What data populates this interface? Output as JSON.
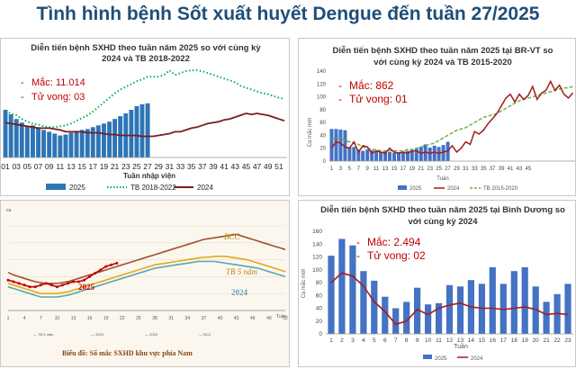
{
  "page_title": "Tình hình bệnh Sốt xuất huyết Dengue đến tuần 27/2025",
  "colors": {
    "bar": "#2e75b6",
    "avg": "#00b050",
    "prev": "#7b1c1c",
    "title": "#1f4e79",
    "annotation": "#c00000"
  },
  "chart_data": [
    {
      "type": "bar",
      "title_line1": "Diễn tiến bệnh SXHD theo tuần năm 2025 so với cùng kỳ",
      "title_line2": "2024 và TB 2018-2022",
      "annotation_cases": "Mắc: 11.014",
      "annotation_deaths": "Tử vong: 03",
      "xlabel": "Tuần nhập viện",
      "x_tick_labels": [
        "01",
        "03",
        "05",
        "07",
        "09",
        "11",
        "13",
        "15",
        "17",
        "19",
        "21",
        "23",
        "25",
        "27",
        "29",
        "31",
        "33",
        "35",
        "37",
        "39",
        "41",
        "43",
        "45",
        "47",
        "49",
        "51"
      ],
      "weeks": [
        1,
        2,
        3,
        4,
        5,
        6,
        7,
        8,
        9,
        10,
        11,
        12,
        13,
        14,
        15,
        16,
        17,
        18,
        19,
        20,
        21,
        22,
        23,
        24,
        25,
        26,
        27,
        28,
        29,
        30,
        31,
        32,
        33,
        34,
        35,
        36,
        37,
        38,
        39,
        40,
        41,
        42,
        43,
        44,
        45,
        46,
        47,
        48,
        49,
        50,
        51,
        52
      ],
      "ylim": [
        0,
        1000
      ],
      "series": [
        {
          "name": "2025",
          "kind": "bar",
          "values": [
            520,
            470,
            420,
            380,
            340,
            350,
            330,
            300,
            280,
            260,
            240,
            250,
            270,
            290,
            300,
            310,
            330,
            350,
            370,
            390,
            420,
            450,
            480,
            520,
            560,
            580,
            590
          ]
        },
        {
          "name": "TB 2018-2022",
          "kind": "dotted",
          "values": [
            500,
            480,
            460,
            420,
            390,
            370,
            360,
            340,
            330,
            330,
            340,
            350,
            370,
            400,
            430,
            460,
            500,
            550,
            600,
            650,
            700,
            740,
            770,
            800,
            830,
            850,
            880,
            880,
            880,
            900,
            950,
            900,
            920,
            940,
            950,
            950,
            940,
            920,
            900,
            880,
            860,
            840,
            820,
            780,
            760,
            740,
            720,
            700,
            690,
            670,
            650,
            640
          ]
        },
        {
          "name": "2024",
          "kind": "line",
          "values": [
            380,
            370,
            360,
            350,
            340,
            330,
            320,
            320,
            320,
            310,
            300,
            280,
            280,
            280,
            280,
            270,
            270,
            270,
            260,
            250,
            250,
            240,
            240,
            240,
            240,
            230,
            230,
            230,
            240,
            250,
            260,
            280,
            280,
            300,
            320,
            330,
            350,
            370,
            380,
            390,
            410,
            420,
            440,
            460,
            480,
            470,
            480,
            470,
            460,
            440,
            420,
            400
          ]
        }
      ],
      "legend": [
        "2025",
        "TB 2018-2022",
        "2024"
      ]
    },
    {
      "type": "bar",
      "title_line1": "Diễn tiến bệnh SXHD theo tuần năm 2025 tại BR-VT so",
      "title_line2": "với cùng kỳ 2024 và TB 2015-2020",
      "annotation_cases": "Mắc: 862",
      "annotation_deaths": "Tử vong: 01",
      "ylabel": "Ca mắc mới",
      "xlabel": "Tuần",
      "y_ticks": [
        "140",
        "120",
        "100",
        "80",
        "60",
        "40",
        "20",
        "0"
      ],
      "x_tick_labels": [
        "1",
        "3",
        "5",
        "7",
        "9",
        "11",
        "13",
        "15",
        "17",
        "19",
        "21",
        "23",
        "25",
        "27",
        "29",
        "31",
        "33",
        "35",
        "37",
        "39",
        "41",
        "43",
        "45"
      ],
      "ylim": [
        0,
        140
      ],
      "series": [
        {
          "name": "2025",
          "kind": "bar",
          "values": [
            50,
            50,
            49,
            48,
            22,
            22,
            18,
            16,
            18,
            17,
            16,
            14,
            15,
            14,
            13,
            14,
            15,
            16,
            17,
            19,
            22,
            26,
            21,
            24,
            22,
            25,
            30
          ]
        },
        {
          "name": "2024",
          "kind": "line",
          "values": [
            20,
            30,
            28,
            22,
            20,
            30,
            14,
            24,
            22,
            12,
            16,
            14,
            12,
            20,
            14,
            12,
            14,
            12,
            16,
            16,
            12,
            14,
            12,
            14,
            12,
            14,
            16,
            24,
            14,
            20,
            30,
            26,
            46,
            42,
            48,
            58,
            66,
            74,
            86,
            98,
            104,
            92,
            104,
            96,
            102,
            116,
            96,
            106,
            110,
            124,
            110,
            118,
            104,
            98,
            106
          ]
        },
        {
          "name": "TB 2015-2020",
          "kind": "dashed",
          "values": [
            34,
            36,
            36,
            32,
            30,
            28,
            26,
            22,
            20,
            18,
            18,
            16,
            16,
            16,
            16,
            16,
            16,
            18,
            18,
            20,
            22,
            24,
            26,
            28,
            32,
            36,
            40,
            44,
            48,
            50,
            52,
            56,
            60,
            64,
            68,
            70,
            72,
            74,
            78,
            82,
            86,
            90,
            94,
            96,
            98,
            100,
            102,
            104,
            106,
            108,
            110,
            112,
            114,
            114,
            116
          ]
        }
      ],
      "legend": [
        "2025",
        "2024",
        "TB 2015-2020"
      ]
    },
    {
      "type": "line",
      "title_partial": "ca",
      "caption": "Biểu đồ: Số mắc SXHD khu vực phía Nam",
      "xlabel": "Tuần",
      "x_tick_labels": [
        "1",
        "4",
        "7",
        "10",
        "13",
        "16",
        "19",
        "22",
        "25",
        "28",
        "31",
        "34",
        "37",
        "40",
        "43",
        "46",
        "49",
        "52"
      ],
      "ylim": [
        0,
        100
      ],
      "labels": {
        "bcc": "BCC",
        "avg": "TB 5 năm",
        "y2024": "2024",
        "y2025": "2025"
      },
      "legend": [
        "— TB 5 năm",
        "— 2024",
        "— 2025",
        "— BCC"
      ],
      "series": [
        {
          "name": "BCC",
          "values": [
            45,
            42,
            40,
            38,
            36,
            34,
            33,
            32,
            32,
            32,
            33,
            34,
            36,
            38,
            40,
            42,
            44,
            46,
            48,
            50,
            52,
            54,
            56,
            58,
            60,
            62,
            64,
            66,
            68,
            70,
            72,
            74,
            76,
            78,
            80,
            82,
            84,
            85,
            86,
            87,
            88,
            89,
            90,
            88,
            86,
            84,
            82,
            80,
            78,
            76,
            74,
            72
          ]
        },
        {
          "name": "TB 5 năm",
          "values": [
            32,
            30,
            28,
            26,
            24,
            22,
            20,
            20,
            20,
            20,
            21,
            22,
            24,
            26,
            28,
            30,
            32,
            34,
            36,
            38,
            40,
            42,
            44,
            46,
            48,
            50,
            52,
            54,
            55,
            56,
            57,
            58,
            59,
            60,
            61,
            62,
            63,
            63,
            64,
            64,
            64,
            63,
            62,
            61,
            60,
            58,
            56,
            54,
            52,
            50,
            48,
            46
          ]
        },
        {
          "name": "2024",
          "values": [
            28,
            26,
            24,
            22,
            20,
            18,
            16,
            16,
            16,
            16,
            17,
            18,
            20,
            22,
            24,
            26,
            28,
            30,
            32,
            34,
            36,
            38,
            40,
            42,
            44,
            46,
            48,
            50,
            51,
            52,
            53,
            54,
            55,
            56,
            57,
            58,
            58,
            58,
            58,
            57,
            56,
            55,
            54,
            53,
            52,
            51,
            50,
            48,
            46,
            44,
            42,
            40
          ]
        },
        {
          "name": "2025",
          "values": [
            36,
            34,
            32,
            30,
            28,
            28,
            30,
            32,
            30,
            28,
            30,
            32,
            34,
            34,
            36,
            40,
            44,
            48,
            52,
            54,
            56
          ]
        }
      ]
    },
    {
      "type": "bar",
      "title_line1": "Diễn tiến bệnh SXHD theo tuần năm 2025 tại Bình Dương so",
      "title_line2": "với cùng kỳ 2024",
      "annotation_cases": "Mắc: 2.494",
      "annotation_deaths": "Tử vong: 02",
      "ylabel": "Ca mắc mới",
      "xlabel": "Tuần",
      "y_ticks": [
        "160",
        "140",
        "120",
        "100",
        "80",
        "60",
        "40",
        "20",
        "0"
      ],
      "x_tick_labels": [
        "1",
        "2",
        "3",
        "4",
        "5",
        "6",
        "7",
        "8",
        "9",
        "10",
        "11",
        "12",
        "13",
        "14",
        "15",
        "16",
        "17",
        "18",
        "19",
        "20",
        "21",
        "22",
        "23"
      ],
      "ylim": [
        0,
        160
      ],
      "series": [
        {
          "name": "2025",
          "kind": "bar",
          "values": [
            122,
            148,
            138,
            98,
            83,
            58,
            40,
            50,
            72,
            46,
            48,
            76,
            74,
            84,
            78,
            104,
            78,
            98,
            104,
            74,
            50,
            62,
            78
          ]
        },
        {
          "name": "2024",
          "kind": "line",
          "values": [
            80,
            95,
            90,
            75,
            50,
            35,
            15,
            20,
            38,
            30,
            40,
            45,
            48,
            42,
            40,
            40,
            38,
            40,
            42,
            38,
            30,
            32,
            30
          ]
        }
      ],
      "legend": [
        "2025",
        "2024"
      ]
    }
  ]
}
